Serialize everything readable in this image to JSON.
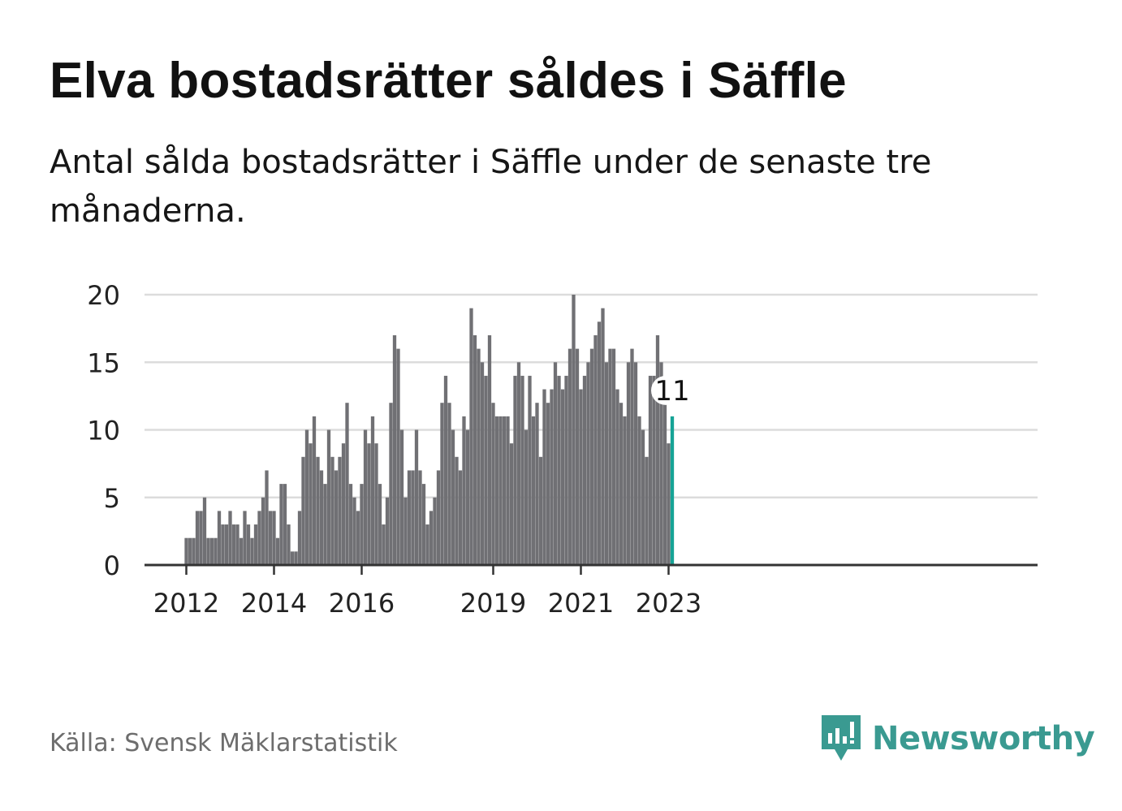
{
  "header": {
    "title": "Elva bostadsrätter såldes i Säffle",
    "subtitle": "Antal sålda bostadsrätter i Säffle under de senaste tre månaderna."
  },
  "footer": {
    "source": "Källa: Svensk Mäklarstatistik",
    "brand": "Newsworthy",
    "brand_icon": "newsworthy-logo-icon"
  },
  "colors": {
    "bar": "#707074",
    "highlight": "#16a396",
    "grid": "#dcdcdc",
    "axis": "#333333",
    "brand": "#3a9a91"
  },
  "chart_data": {
    "type": "bar",
    "title": "Elva bostadsrätter såldes i Säffle",
    "subtitle": "Antal sålda bostadsrätter i Säffle under de senaste tre månaderna.",
    "xlabel": "",
    "ylabel": "",
    "x_start": "2012-01",
    "x_end": "2023-02",
    "ylim": [
      0,
      20
    ],
    "yticks": [
      0,
      5,
      10,
      15,
      20
    ],
    "xtick_labels": [
      {
        "label": "2012",
        "month": "2012-01"
      },
      {
        "label": "2014",
        "month": "2014-01"
      },
      {
        "label": "2016",
        "month": "2016-01"
      },
      {
        "label": "2019",
        "month": "2019-01"
      },
      {
        "label": "2021",
        "month": "2021-01"
      },
      {
        "label": "2023",
        "month": "2023-01"
      }
    ],
    "grid": true,
    "highlight": {
      "month": "2023-02",
      "label": "11"
    },
    "series": [
      {
        "values": [
          2,
          2,
          2,
          4,
          4,
          5,
          2,
          2,
          2,
          4,
          3,
          3,
          4,
          3,
          3,
          2,
          4,
          3,
          2,
          3,
          4,
          5,
          7,
          4,
          4,
          2,
          6,
          6,
          3,
          1,
          1,
          4,
          8,
          10,
          9,
          11,
          8,
          7,
          6,
          10,
          8,
          7,
          8,
          9,
          12,
          6,
          5,
          4,
          6,
          10,
          9,
          11,
          9,
          6,
          3,
          5,
          12,
          17,
          16,
          10,
          5,
          7,
          7,
          10,
          7,
          6,
          3,
          4,
          5,
          7,
          12,
          14,
          12,
          10,
          8,
          7,
          11,
          10,
          19,
          17,
          16,
          15,
          14,
          17,
          12,
          11,
          11,
          11,
          11,
          9,
          14,
          15,
          14,
          10,
          14,
          11,
          12,
          8,
          13,
          12,
          13,
          15,
          14,
          13,
          14,
          16,
          20,
          16,
          13,
          14,
          15,
          16,
          17,
          18,
          19,
          15,
          16,
          16,
          13,
          12,
          11,
          15,
          16,
          15,
          11,
          10,
          8,
          14,
          14,
          17,
          15,
          12,
          9,
          11
        ]
      }
    ]
  }
}
